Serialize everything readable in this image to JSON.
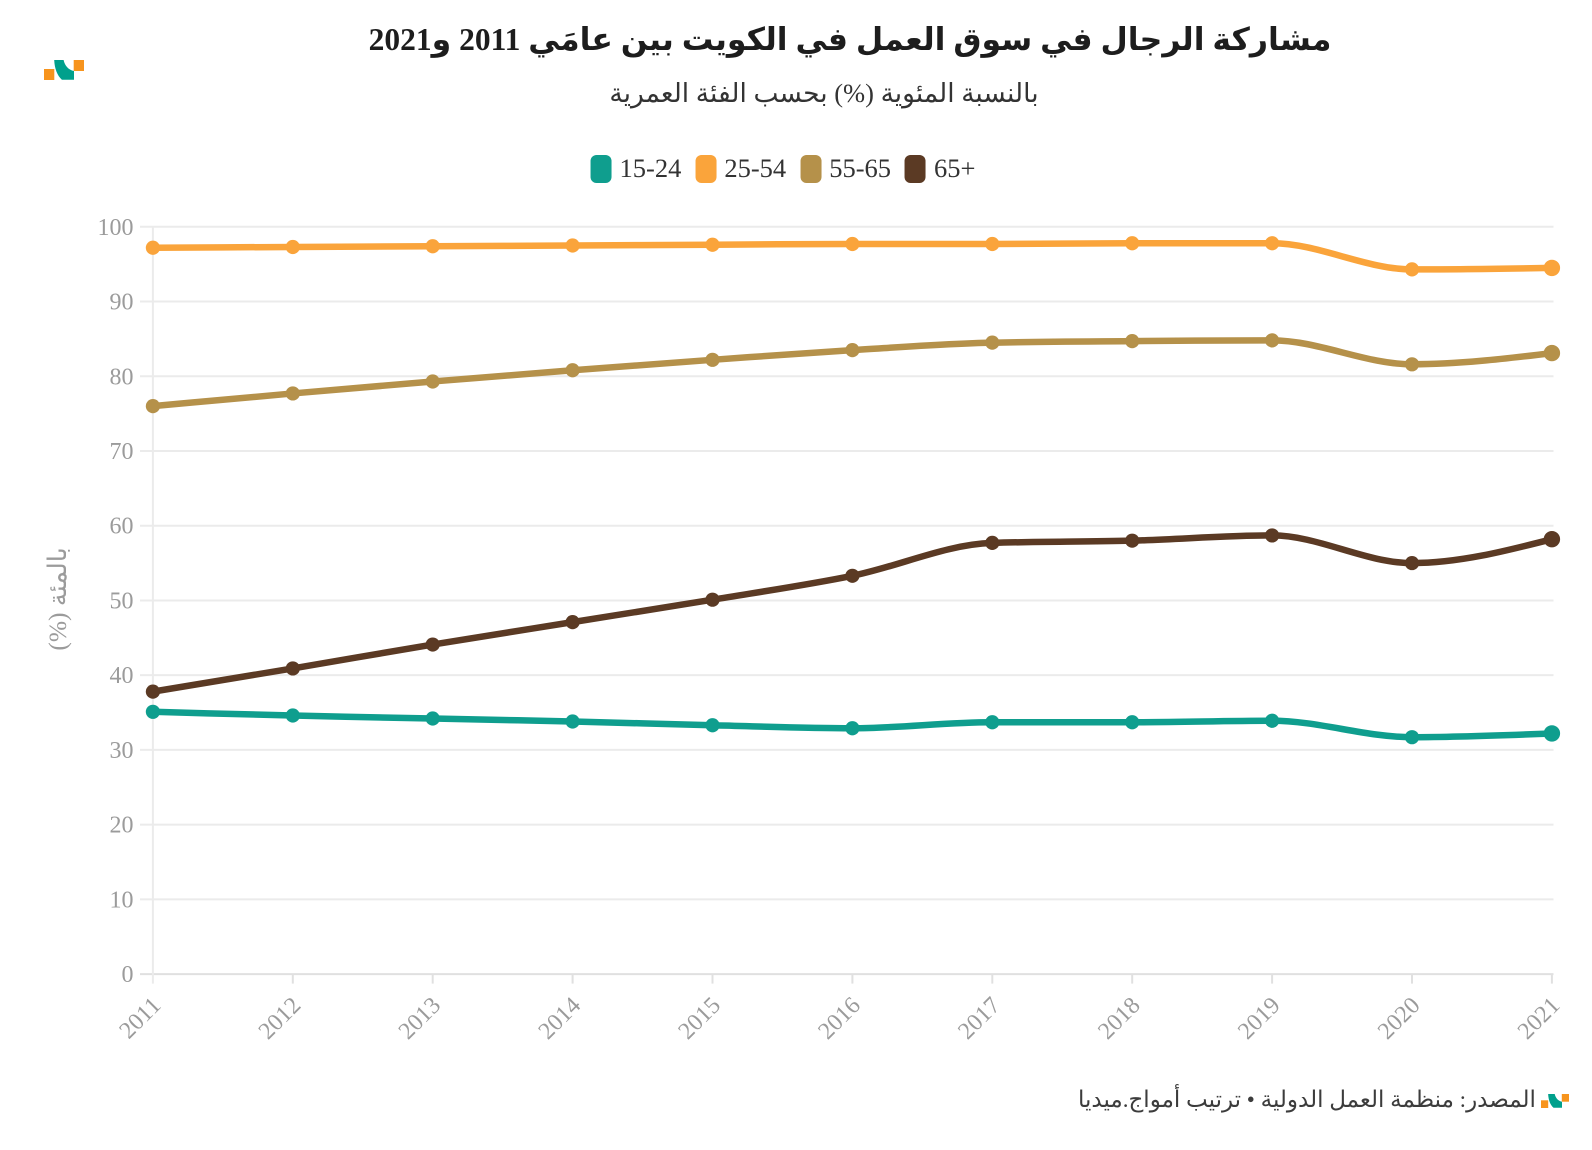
{
  "header": {
    "title": "مشاركة الرجال في سوق العمل في الكويت بين عامَي 2011 و2021",
    "subtitle": "بالنسبة المئوية (%) بحسب الفئة العمرية"
  },
  "brand": {
    "logo_colors": {
      "squares": "#f7941d",
      "swoosh": "#00a08c"
    }
  },
  "footer": {
    "source_text": "المصدر: منظمة العمل الدولية • ترتيب أمواج.ميديا"
  },
  "chart_data": {
    "type": "line",
    "title": "مشاركة الرجال في سوق العمل في الكويت بين عامَي 2011 و2021",
    "subtitle": "بالنسبة المئوية (%) بحسب الفئة العمرية",
    "xlabel": "",
    "ylabel": "بالمئة (%)",
    "x": [
      2011,
      2012,
      2013,
      2014,
      2015,
      2016,
      2017,
      2018,
      2019,
      2020,
      2021
    ],
    "series": [
      {
        "name": "15-24",
        "color": "#0f9e8e",
        "values": [
          35.1,
          34.6,
          34.2,
          33.8,
          33.3,
          32.9,
          33.7,
          33.7,
          33.9,
          31.7,
          32.2
        ]
      },
      {
        "name": "25-54",
        "color": "#faa43b",
        "values": [
          97.2,
          97.3,
          97.4,
          97.5,
          97.6,
          97.7,
          97.7,
          97.8,
          97.8,
          94.3,
          94.5
        ]
      },
      {
        "name": "55-65",
        "color": "#b5914a",
        "values": [
          76.0,
          77.7,
          79.3,
          80.8,
          82.2,
          83.5,
          84.5,
          84.7,
          84.8,
          81.6,
          83.1
        ]
      },
      {
        "name": "65+",
        "color": "#5b3a24",
        "values": [
          37.8,
          40.9,
          44.1,
          47.1,
          50.1,
          53.3,
          57.7,
          58.0,
          58.7,
          55.0,
          58.2
        ]
      }
    ],
    "ylim": [
      0,
      100
    ],
    "yticks": [
      0,
      10,
      20,
      30,
      40,
      50,
      60,
      70,
      80,
      90,
      100
    ],
    "grid": "horizontal",
    "legend_position": "top-center",
    "curve": "monotone-x",
    "x_tick_rotation": -45
  }
}
